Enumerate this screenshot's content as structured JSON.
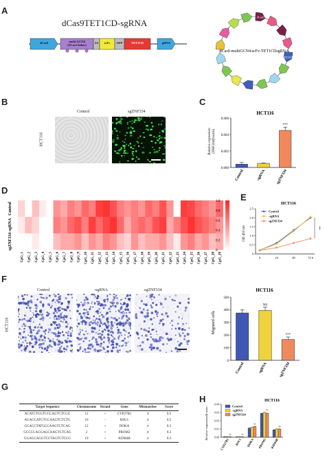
{
  "panels": {
    "A": "A",
    "B": "B",
    "C": "C",
    "D": "D",
    "E": "E",
    "F": "F",
    "G": "G",
    "H": "H"
  },
  "panel_a": {
    "title": "dCas9TET1CD-sgRNA",
    "segments": [
      {
        "label": "dCas9",
        "color": "#3fa7e0"
      },
      {
        "label": "multi GCN4\n(22 aa Linker)",
        "color": "#a97fd0"
      },
      {
        "label": "2A",
        "color": "#bdbdbd"
      },
      {
        "label": "scFv",
        "color": "#f2ea3a"
      },
      {
        "label": "GFP",
        "color": "#bdbdbd"
      },
      {
        "label": "TET1CD",
        "color": "#e53935"
      },
      {
        "label": "gRNA",
        "color": "#3fa7e0"
      }
    ],
    "plasmid_label": "dCas9-multiGCN4/scFv-TET1CDsgRNA",
    "plasmid_arrows": [
      {
        "label": "dCas9",
        "color": "#7b1e4a"
      },
      {
        "label": "",
        "color": "#e85a8a"
      },
      {
        "label": "",
        "color": "#7b1e4a"
      },
      {
        "label": "",
        "color": "#e85a8a"
      },
      {
        "label": "TET1CD",
        "color": "#3f5fbf"
      },
      {
        "label": "",
        "color": "#7ec850"
      },
      {
        "label": "",
        "color": "#9fd7f0"
      },
      {
        "label": "",
        "color": "#7ec850"
      },
      {
        "label": "",
        "color": "#3f5fbf"
      },
      {
        "label": "",
        "color": "#e8e84a"
      },
      {
        "label": "",
        "color": "#7ec850"
      },
      {
        "label": "",
        "color": "#9fd7f0"
      },
      {
        "label": "",
        "color": "#e8c23a"
      },
      {
        "label": "",
        "color": "#e85aa0"
      },
      {
        "label": "",
        "color": "#b5e04a"
      },
      {
        "label": "",
        "color": "#7ec850"
      }
    ]
  },
  "panel_b": {
    "col_labels": [
      "Control",
      "sgZNF334"
    ],
    "row_label": "HCT116"
  },
  "chart_data": [
    {
      "id": "C",
      "type": "bar",
      "title": "HCT116",
      "ylabel": "Relative expression\n(ZNF334/β-actin)",
      "categories": [
        "Control",
        "-sgRNA",
        "sgZNF334"
      ],
      "values": [
        0.0004,
        0.0005,
        0.0045
      ],
      "errors": [
        0.0002,
        5e-05,
        0.0004
      ],
      "colors": [
        "#3f58b5",
        "#f0d23a",
        "#f08a5d"
      ],
      "ylim": [
        0,
        0.006
      ],
      "yticks": [
        "0.000",
        "0.002",
        "0.004",
        "0.006"
      ],
      "yticks_values": [
        0,
        0.002,
        0.004,
        0.006
      ],
      "annotations": [
        "",
        "",
        "***"
      ]
    },
    {
      "id": "D",
      "type": "heatmap",
      "rows": [
        "Control",
        "-sgRNA",
        "sgZNF334"
      ],
      "columns": [
        "CpG_1",
        "CpG_2",
        "CpG_3",
        "CpG_4",
        "CpG_5",
        "CpG_6",
        "CpG_7",
        "CpG_8",
        "CpG_9",
        "CpG_10",
        "CpG_11",
        "CpG_12",
        "CpG_13",
        "CpG_14",
        "CpG_15",
        "CpG_16",
        "CpG_17",
        "CpG_18",
        "CpG_19",
        "CpG_20",
        "CpG_21",
        "CpG_22",
        "CpG_23",
        "CpG_24",
        "CpG_25",
        "CpG_26",
        "CpG_27",
        "CpG_28",
        "CpG_29"
      ],
      "values": [
        [
          0.2,
          0.0,
          0.3,
          0.1,
          0.0,
          0.5,
          0.4,
          0.6,
          0.5,
          0.7,
          0.6,
          0.9,
          0.95,
          0.8,
          0.6,
          0.5,
          0.6,
          0.5,
          0.7,
          0.6,
          0.8,
          0.5,
          0.0,
          0.9,
          0.85,
          0.7,
          0.6,
          0.5,
          0.7
        ],
        [
          0.1,
          0.3,
          0.2,
          0.0,
          0.0,
          0.6,
          0.5,
          0.7,
          0.8,
          0.6,
          0.9,
          0.7,
          0.85,
          0.95,
          0.7,
          0.4,
          0.6,
          0.7,
          0.6,
          0.8,
          0.9,
          0.4,
          0.6,
          0.8,
          0.95,
          0.8,
          0.7,
          0.6,
          0.5
        ],
        [
          0.0,
          0.0,
          0.1,
          0.0,
          0.0,
          0.3,
          0.4,
          0.4,
          0.5,
          0.3,
          0.5,
          0.4,
          0.6,
          0.5,
          0.3,
          0.2,
          0.5,
          0.3,
          0.4,
          0.4,
          0.5,
          0.3,
          0.1,
          0.5,
          0.6,
          0.4,
          0.5,
          0.3,
          0.4
        ]
      ],
      "colorbar_ticks": [
        "1.0",
        "0.8",
        "0.6",
        "0.4",
        "0.2",
        "0"
      ],
      "colorbar_ticks_values": [
        1.0,
        0.8,
        0.6,
        0.4,
        0.2,
        0
      ],
      "vmin": 0,
      "vmax": 1
    },
    {
      "id": "E",
      "type": "line",
      "title": "HCT116",
      "ylabel": "OD 450 nm",
      "x": [
        0,
        24,
        48,
        72
      ],
      "xticks": [
        "0",
        "24",
        "48",
        "72 h"
      ],
      "ylim": [
        0,
        2.5
      ],
      "yticks": [
        "0",
        "0.5",
        "1.0",
        "1.5",
        "2.0",
        "2.5"
      ],
      "yticks_values": [
        0,
        0.5,
        1.0,
        1.5,
        2.0,
        2.5
      ],
      "series": [
        {
          "name": "Control",
          "values": [
            0.2,
            0.6,
            1.3,
            2.0
          ],
          "color": "#3f58b5"
        },
        {
          "name": "-sgRNA",
          "values": [
            0.2,
            0.55,
            1.25,
            2.05
          ],
          "color": "#f0c030"
        },
        {
          "name": "sgZNF334",
          "values": [
            0.2,
            0.35,
            0.6,
            0.85
          ],
          "color": "#f08a5d"
        }
      ],
      "annotations": [
        "**"
      ]
    },
    {
      "id": "F",
      "type": "bar",
      "title": "HCT116",
      "ylabel": "Migrated cells",
      "categories": [
        "Control",
        "-sgRNA",
        "sgZNF334"
      ],
      "values": [
        375,
        395,
        165
      ],
      "errors": [
        25,
        25,
        20
      ],
      "colors": [
        "#3f58b5",
        "#f0d23a",
        "#f08a5d"
      ],
      "ylim": [
        0,
        500
      ],
      "yticks": [
        "0",
        "100",
        "200",
        "300",
        "400",
        "500"
      ],
      "yticks_values": [
        0,
        100,
        200,
        300,
        400,
        500
      ],
      "annotations": [
        "",
        "NS",
        "***"
      ]
    },
    {
      "id": "H",
      "type": "bar",
      "title": "HCT116",
      "ylabel": "Relative expression/β-actin",
      "categories": [
        "CYP27B1",
        "RSU1",
        "DOKA",
        "PROM2",
        "KDM4B"
      ],
      "series": [
        {
          "name": "Control",
          "values": [
            0.0005,
            0.0004,
            0.011,
            0.029,
            0.009
          ],
          "color": "#3f58b5"
        },
        {
          "name": "-sgRNA",
          "values": [
            0.0006,
            0.0005,
            0.012,
            0.03,
            0.01
          ],
          "color": "#f0d23a"
        },
        {
          "name": "sgZNF334",
          "values": [
            0.0005,
            0.0004,
            0.013,
            0.029,
            0.01
          ],
          "color": "#f08a5d"
        }
      ],
      "ylim": [
        0,
        0.04
      ],
      "yticks": [
        "0.00",
        "0.01",
        "0.02",
        "0.03",
        "0.04"
      ],
      "yticks_values": [
        0,
        0.01,
        0.02,
        0.03,
        0.04
      ],
      "annotations": [
        "ns",
        "ns",
        "ns",
        "ns",
        "ns"
      ]
    }
  ],
  "panel_f": {
    "col_labels": [
      "Control",
      "-sgRNA",
      "sgZNF334"
    ],
    "row_label": "HCT116"
  },
  "table_g": {
    "headers": [
      "Target Sequence",
      "Chromosome",
      "Strand",
      "Gene",
      "Mismatches",
      "Score"
    ],
    "rows": [
      [
        "ACATCTGGTCCCAGTCTCGG",
        "12",
        "+",
        "CYP27B1",
        "4",
        "0.5"
      ],
      [
        "AGACCATGTCCAAGTCTCTG",
        "10",
        "-",
        "RSU1",
        "4",
        "0.5"
      ],
      [
        "GCACCTATGCCAAGTCTCAG",
        "12",
        "+",
        "DOKA",
        "4",
        "0.3"
      ],
      [
        "GCCCCAGGAGCAAGTCTCAG",
        "2",
        "+",
        "PROM2",
        "4",
        "0.3"
      ],
      [
        "GGAGCAGGTCCTAGTCTCCG",
        "19",
        "+",
        "KDM4B",
        "4",
        "0.3"
      ]
    ]
  }
}
